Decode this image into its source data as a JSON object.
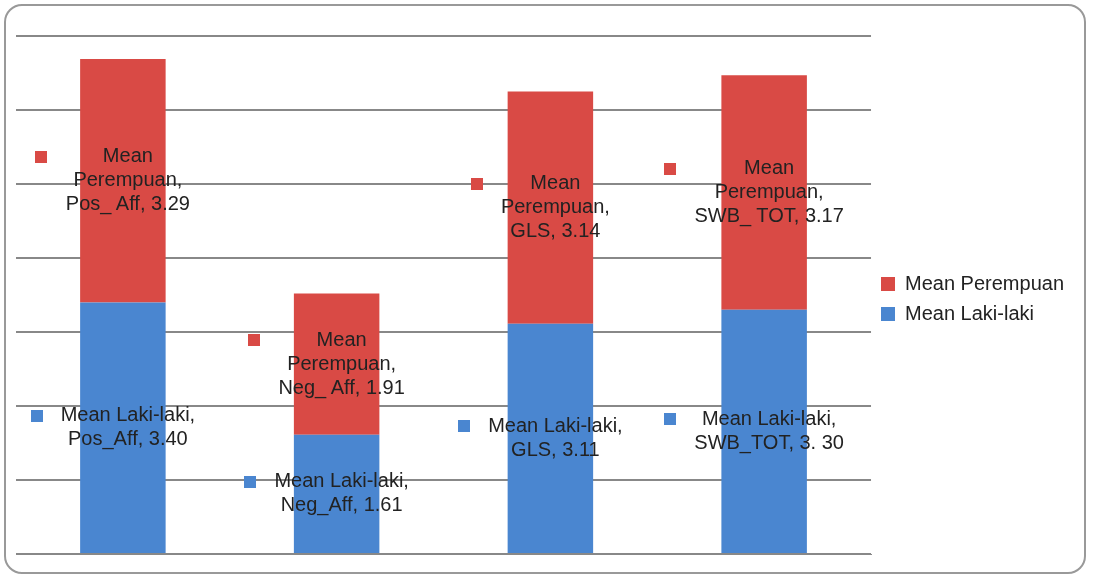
{
  "chart_data": {
    "type": "bar",
    "stacked": true,
    "categories": [
      null,
      null,
      null,
      null
    ],
    "series": [
      {
        "name": "Mean Laki-laki",
        "color": "#4a86d0",
        "values": [
          3.4,
          1.61,
          3.11,
          3.3
        ],
        "value_labels": [
          "Mean Laki-laki, Pos_Aff, 3.40",
          "Mean Laki-laki, Neg_Aff, 1.61",
          "Mean Laki-laki, GLS, 3.11",
          "Mean Laki-laki, SWB_TOT, 3. 30"
        ]
      },
      {
        "name": "Mean Perempuan",
        "color": "#d94a45",
        "values": [
          3.29,
          1.91,
          3.14,
          3.17
        ],
        "value_labels": [
          "Mean Perempuan, Pos_ Aff, 3.29",
          "Mean Perempuan, Neg_ Aff, 1.91",
          "Mean Perempuan, GLS, 3.14",
          "Mean Perempuan, SWB_ TOT, 3.17"
        ]
      }
    ],
    "ylim": [
      0,
      7
    ],
    "yticks": [
      {
        "value": 0,
        "label": null
      },
      {
        "value": 1,
        "label": null
      },
      {
        "value": 2,
        "label": null
      },
      {
        "value": 3,
        "label": null
      },
      {
        "value": 4,
        "label": null
      },
      {
        "value": 5,
        "label": null
      },
      {
        "value": 6,
        "label": null
      },
      {
        "value": 7,
        "label": null
      }
    ],
    "grid": "y",
    "tick_labels": false,
    "legend": "right"
  }
}
